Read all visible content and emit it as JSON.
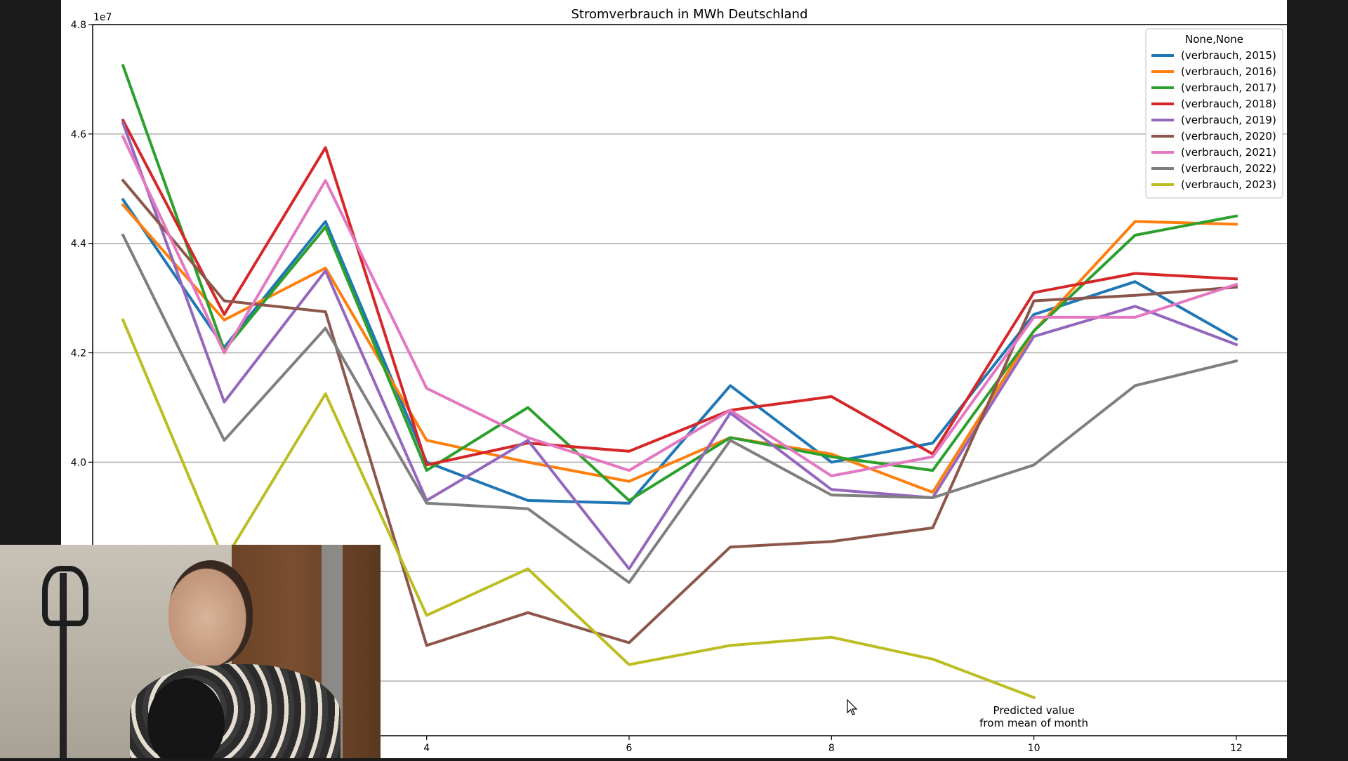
{
  "chart_data": {
    "type": "line",
    "title": "Stromverbrauch in MWh Deutschland",
    "xlabel": "",
    "ylabel": "",
    "y_scale_label": "1e7",
    "x_range": [
      0.7,
      12.5
    ],
    "y_range": [
      35000000.0,
      48000000.0
    ],
    "grid": "horizontal",
    "x_ticks": [
      4,
      6,
      8,
      10,
      12
    ],
    "y_ticks": [
      {
        "value": 40000000.0,
        "label": "4.0"
      },
      {
        "value": 42000000.0,
        "label": "4.2"
      },
      {
        "value": 44000000.0,
        "label": "4.4"
      },
      {
        "value": 46000000.0,
        "label": "4.6"
      },
      {
        "value": 48000000.0,
        "label": "4.8"
      }
    ],
    "legend_title": "None,None",
    "legend_position": "top-right",
    "x": [
      1,
      2,
      3,
      4,
      5,
      6,
      7,
      8,
      9,
      10,
      11,
      12
    ],
    "series": [
      {
        "name": "(verbrauch, 2015)",
        "color": "#1f77b4",
        "values": [
          44800000,
          42100000,
          44400000,
          40000000,
          39300000,
          39250000,
          41400000,
          40000000,
          40350000,
          42700000,
          43300000,
          42250000
        ]
      },
      {
        "name": "(verbrauch, 2016)",
        "color": "#ff7f0e",
        "values": [
          44700000,
          42600000,
          43550000,
          40400000,
          40000000,
          39650000,
          40450000,
          40150000,
          39450000,
          42400000,
          44400000,
          44350000
        ]
      },
      {
        "name": "(verbrauch, 2017)",
        "color": "#2ca02c",
        "values": [
          47250000,
          42050000,
          44300000,
          39850000,
          41000000,
          39300000,
          40450000,
          40100000,
          39850000,
          42400000,
          44150000,
          44500000
        ]
      },
      {
        "name": "(verbrauch, 2018)",
        "color": "#d62728",
        "values": [
          46250000,
          42700000,
          45750000,
          39950000,
          40350000,
          40200000,
          40950000,
          41200000,
          40150000,
          43100000,
          43450000,
          43350000
        ]
      },
      {
        "name": "(verbrauch, 2019)",
        "color": "#9467bd",
        "values": [
          46200000,
          41100000,
          43500000,
          39300000,
          40400000,
          38050000,
          40900000,
          39500000,
          39350000,
          42300000,
          42850000,
          42150000
        ]
      },
      {
        "name": "(verbrauch, 2020)",
        "color": "#8c564b",
        "values": [
          45150000,
          42950000,
          42750000,
          36650000,
          37250000,
          36700000,
          38450000,
          38550000,
          38800000,
          42950000,
          43050000,
          43200000
        ]
      },
      {
        "name": "(verbrauch, 2021)",
        "color": "#e377c2",
        "values": [
          45950000,
          42000000,
          45150000,
          41350000,
          40450000,
          39850000,
          40950000,
          39750000,
          40100000,
          42650000,
          42650000,
          43250000
        ]
      },
      {
        "name": "(verbrauch, 2022)",
        "color": "#7f7f7f",
        "values": [
          44150000,
          40400000,
          42450000,
          39250000,
          39150000,
          37800000,
          40400000,
          39400000,
          39350000,
          39950000,
          41400000,
          41850000
        ]
      },
      {
        "name": "(verbrauch, 2023)",
        "color": "#bcbd22",
        "values": [
          42600000,
          38200000,
          41250000,
          37200000,
          38050000,
          36300000,
          36650000,
          36800000,
          36400000,
          35700000,
          null,
          null
        ]
      }
    ],
    "annotations": [
      {
        "text_lines": [
          "Predicted value",
          "from mean of month"
        ],
        "x": 10,
        "y": 35400000
      }
    ]
  },
  "webcam": {
    "label": "presenter-webcam"
  }
}
